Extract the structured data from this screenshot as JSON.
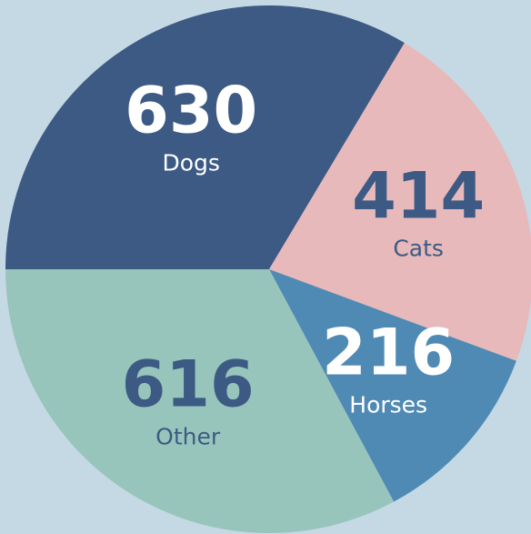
{
  "chart_data": {
    "type": "pie",
    "categories": [
      "Dogs",
      "Cats",
      "Horses",
      "Other"
    ],
    "values": [
      630,
      414,
      216,
      616
    ],
    "colors": [
      "#3d5a84",
      "#e8b9bb",
      "#4f8ab5",
      "#98c5bb"
    ],
    "label_colors": [
      "#ffffff",
      "#3d5a84",
      "#ffffff",
      "#3d5a84"
    ],
    "start_angle": 270,
    "direction": "clockwise"
  }
}
